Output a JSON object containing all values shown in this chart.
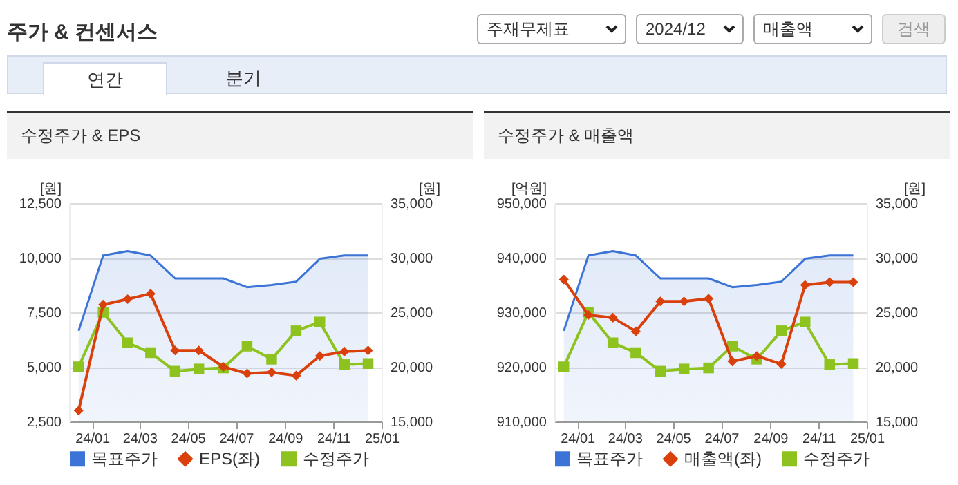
{
  "chart_data": [
    {
      "type": "other",
      "title": "주가 & 컨센서스",
      "annotations": [
        "주재무제표",
        "2024/12",
        "매출액",
        "검색",
        "연간",
        "분기"
      ]
    },
    {
      "type": "line",
      "title": "수정주가 & EPS",
      "x": [
        "2023-12-15",
        "2024-01-15",
        "2024-02-15",
        "2024-03-15",
        "2024-04-15",
        "2024-05-15",
        "2024-06-15",
        "2024-07-15",
        "2024-08-15",
        "2024-09-15",
        "2024-10-15",
        "2024-11-15",
        "2024-12-15"
      ],
      "xlim": [
        "2023-12-03",
        "2025-01-01"
      ],
      "xticks": [
        {
          "value": "2024-01",
          "label": "24/01"
        },
        {
          "value": "2024-03",
          "label": "24/03"
        },
        {
          "value": "2024-05",
          "label": "24/05"
        },
        {
          "value": "2024-07",
          "label": "24/07"
        },
        {
          "value": "2024-09",
          "label": "24/09"
        },
        {
          "value": "2024-11",
          "label": "24/11"
        },
        {
          "value": "2025-01",
          "label": "25/01"
        }
      ],
      "ylabel": "[원]",
      "y2label": "[원]",
      "ylim": [
        2500,
        12500
      ],
      "yticks": [
        {
          "value": 2500,
          "label": "2,500"
        },
        {
          "value": 5000,
          "label": "5,000"
        },
        {
          "value": 7500,
          "label": "7,500"
        },
        {
          "value": 10000,
          "label": "10,000"
        },
        {
          "value": 12500,
          "label": "12,500"
        }
      ],
      "y2lim": [
        15000,
        35000
      ],
      "y2ticks": [
        {
          "value": 15000,
          "label": "15,000"
        },
        {
          "value": 20000,
          "label": "20,000"
        },
        {
          "value": 25000,
          "label": "25,000"
        },
        {
          "value": 30000,
          "label": "30,000"
        },
        {
          "value": 35000,
          "label": "35,000"
        }
      ],
      "grid": "y",
      "legend": "bottom",
      "series": [
        {
          "name": "목표주가",
          "type": "area",
          "axis": "y2",
          "color": "#3b74d6",
          "marker": "none",
          "values": [
            23300,
            30200,
            30600,
            30200,
            28100,
            28100,
            28100,
            27300,
            27500,
            27800,
            29900,
            30200,
            30200
          ]
        },
        {
          "name": "EPS(좌)",
          "type": "line",
          "color": "#d9400c",
          "marker": "diamond",
          "values": [
            3000,
            7850,
            8100,
            8350,
            5750,
            5750,
            5000,
            4700,
            4750,
            4600,
            5500,
            5700,
            5750
          ]
        },
        {
          "name": "수정주가",
          "type": "line",
          "axis": "y2",
          "color": "#8dc21f",
          "marker": "square",
          "values": [
            20000,
            25000,
            22200,
            21300,
            19600,
            19800,
            19900,
            21900,
            20700,
            23300,
            24100,
            20200,
            20300
          ]
        }
      ]
    },
    {
      "type": "line",
      "title": "수정주가 & 매출액",
      "x": [
        "2023-12-15",
        "2024-01-15",
        "2024-02-15",
        "2024-03-15",
        "2024-04-15",
        "2024-05-15",
        "2024-06-15",
        "2024-07-15",
        "2024-08-15",
        "2024-09-15",
        "2024-10-15",
        "2024-11-15",
        "2024-12-15"
      ],
      "xlim": [
        "2023-12-03",
        "2025-01-01"
      ],
      "xticks": [
        {
          "value": "2024-01",
          "label": "24/01"
        },
        {
          "value": "2024-03",
          "label": "24/03"
        },
        {
          "value": "2024-05",
          "label": "24/05"
        },
        {
          "value": "2024-07",
          "label": "24/07"
        },
        {
          "value": "2024-09",
          "label": "24/09"
        },
        {
          "value": "2024-11",
          "label": "24/11"
        },
        {
          "value": "2025-01",
          "label": "25/01"
        }
      ],
      "ylabel": "[억원]",
      "y2label": "[원]",
      "ylim": [
        910000,
        950000
      ],
      "yticks": [
        {
          "value": 910000,
          "label": "910,000"
        },
        {
          "value": 920000,
          "label": "920,000"
        },
        {
          "value": 930000,
          "label": "930,000"
        },
        {
          "value": 940000,
          "label": "940,000"
        },
        {
          "value": 950000,
          "label": "950,000"
        }
      ],
      "y2lim": [
        15000,
        35000
      ],
      "y2ticks": [
        {
          "value": 15000,
          "label": "15,000"
        },
        {
          "value": 20000,
          "label": "20,000"
        },
        {
          "value": 25000,
          "label": "25,000"
        },
        {
          "value": 30000,
          "label": "30,000"
        },
        {
          "value": 35000,
          "label": "35,000"
        }
      ],
      "grid": "y",
      "legend": "bottom",
      "series": [
        {
          "name": "목표주가",
          "type": "area",
          "axis": "y2",
          "color": "#3b74d6",
          "marker": "none",
          "values": [
            23300,
            30200,
            30600,
            30200,
            28100,
            28100,
            28100,
            27300,
            27500,
            27800,
            29900,
            30200,
            30200
          ]
        },
        {
          "name": "매출액(좌)",
          "type": "line",
          "color": "#d9400c",
          "marker": "diamond",
          "values": [
            936000,
            929500,
            929000,
            926500,
            932000,
            932000,
            932500,
            921000,
            922000,
            920500,
            935000,
            935500,
            935500
          ]
        },
        {
          "name": "수정주가",
          "type": "line",
          "axis": "y2",
          "color": "#8dc21f",
          "marker": "square",
          "values": [
            20000,
            25000,
            22200,
            21300,
            19600,
            19800,
            19900,
            21900,
            20700,
            23300,
            24100,
            20200,
            20300
          ]
        }
      ]
    }
  ]
}
